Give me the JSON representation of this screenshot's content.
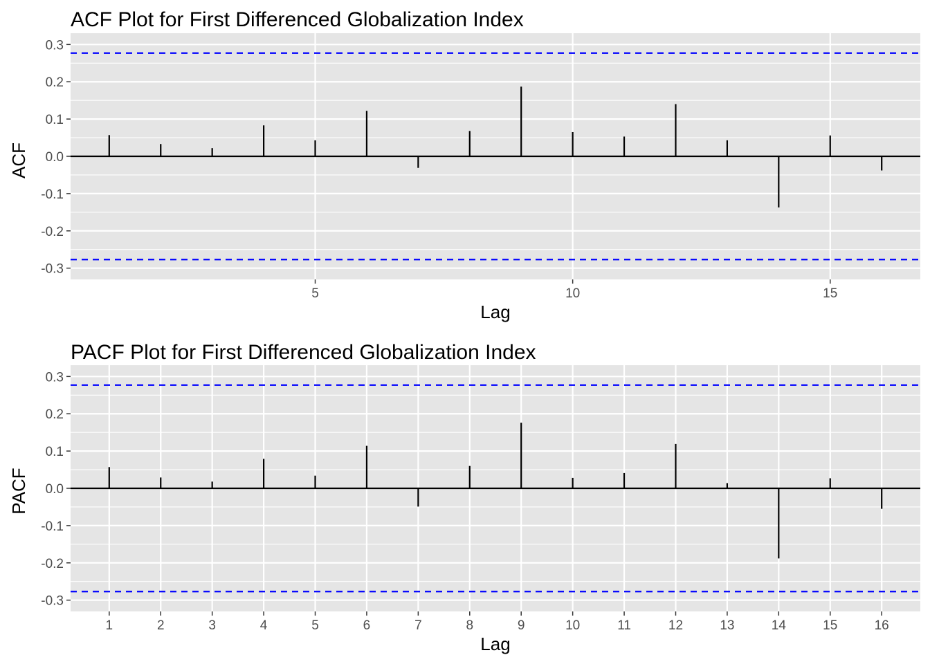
{
  "chart_data": [
    {
      "type": "bar",
      "title": "ACF Plot for First Differenced Globalization Index",
      "xlabel": "Lag",
      "ylabel": "ACF",
      "x": [
        1,
        2,
        3,
        4,
        5,
        6,
        7,
        8,
        9,
        10,
        11,
        12,
        13,
        14,
        15,
        16
      ],
      "values": [
        0.057,
        0.033,
        0.022,
        0.083,
        0.043,
        0.122,
        -0.031,
        0.068,
        0.187,
        0.065,
        0.053,
        0.14,
        0.043,
        -0.137,
        0.056,
        -0.038
      ],
      "xticks": [
        5,
        10,
        15
      ],
      "xtick_labels": [
        "5",
        "10",
        "15"
      ],
      "yticks": [
        -0.3,
        -0.2,
        -0.1,
        0.0,
        0.1,
        0.2,
        0.3
      ],
      "ytick_labels": [
        "-0.3",
        "-0.2",
        "-0.1",
        "0.0",
        "0.1",
        "0.2",
        "0.3"
      ],
      "xlim": [
        0.25,
        16.75
      ],
      "ylim": [
        -0.3,
        0.3
      ],
      "confidence_bounds": [
        0.277,
        -0.277
      ],
      "grid": true,
      "colors": {
        "panel": "#e5e5e5",
        "grid": "#ffffff",
        "bars": "#000000",
        "bounds": "#0000ff",
        "tick_text": "#4d4d4d"
      }
    },
    {
      "type": "bar",
      "title": "PACF Plot for First Differenced Globalization Index",
      "xlabel": "Lag",
      "ylabel": "PACF",
      "x": [
        1,
        2,
        3,
        4,
        5,
        6,
        7,
        8,
        9,
        10,
        11,
        12,
        13,
        14,
        15,
        16
      ],
      "values": [
        0.057,
        0.029,
        0.018,
        0.079,
        0.034,
        0.114,
        -0.049,
        0.06,
        0.176,
        0.028,
        0.041,
        0.119,
        0.014,
        -0.188,
        0.027,
        -0.055
      ],
      "xticks": [
        1,
        2,
        3,
        4,
        5,
        6,
        7,
        8,
        9,
        10,
        11,
        12,
        13,
        14,
        15,
        16
      ],
      "xtick_labels": [
        "1",
        "2",
        "3",
        "4",
        "5",
        "6",
        "7",
        "8",
        "9",
        "10",
        "11",
        "12",
        "13",
        "14",
        "15",
        "16"
      ],
      "yticks": [
        -0.3,
        -0.2,
        -0.1,
        0.0,
        0.1,
        0.2,
        0.3
      ],
      "ytick_labels": [
        "-0.3",
        "-0.2",
        "-0.1",
        "0.0",
        "0.1",
        "0.2",
        "0.3"
      ],
      "xlim": [
        0.25,
        16.75
      ],
      "ylim": [
        -0.3,
        0.3
      ],
      "confidence_bounds": [
        0.277,
        -0.277
      ],
      "grid": true,
      "colors": {
        "panel": "#e5e5e5",
        "grid": "#ffffff",
        "bars": "#000000",
        "bounds": "#0000ff",
        "tick_text": "#4d4d4d"
      }
    }
  ]
}
